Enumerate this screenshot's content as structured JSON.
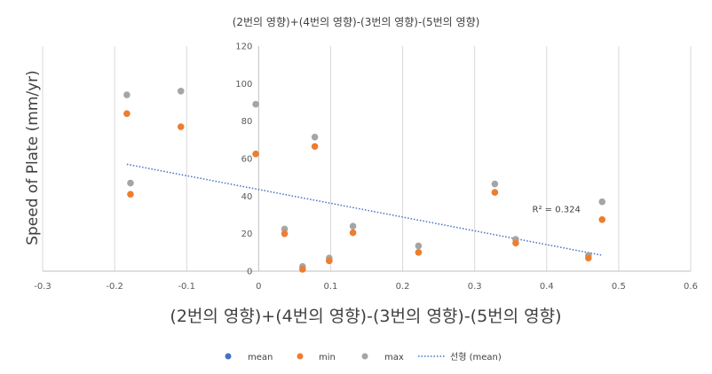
{
  "chart_data": {
    "type": "scatter",
    "title": "(2번의 영향)+(4번의 영향)-(3번의 영향)-(5번의 영향)",
    "xlabel": "(2번의 영향)+(4번의 영향)-(3번의 영향)-(5번의 영향)",
    "ylabel": "Speed of Plate (mm/yr)",
    "xlim": [
      -0.3,
      0.6
    ],
    "ylim": [
      0,
      120
    ],
    "x_ticks": [
      "-0.3",
      "-0.2",
      "-0.1",
      "0",
      "0.1",
      "0.2",
      "0.3",
      "0.4",
      "0.5",
      "0.6"
    ],
    "y_ticks": [
      "0",
      "20",
      "40",
      "60",
      "80",
      "100",
      "120"
    ],
    "grid": "vertical",
    "legend_position": "bottom",
    "series": [
      {
        "name": "mean",
        "color": "#4472C4",
        "points": []
      },
      {
        "name": "min",
        "color": "#ED7D31",
        "points": [
          [
            -0.183,
            84
          ],
          [
            -0.178,
            41
          ],
          [
            -0.108,
            77
          ],
          [
            -0.004,
            62.5
          ],
          [
            0.036,
            20
          ],
          [
            0.061,
            1
          ],
          [
            0.078,
            66.5
          ],
          [
            0.098,
            5.5
          ],
          [
            0.131,
            20.5
          ],
          [
            0.222,
            10
          ],
          [
            0.328,
            42
          ],
          [
            0.357,
            15
          ],
          [
            0.458,
            7
          ],
          [
            0.477,
            27.5
          ]
        ]
      },
      {
        "name": "max",
        "color": "#A5A5A5",
        "points": [
          [
            -0.183,
            94
          ],
          [
            -0.178,
            47
          ],
          [
            -0.108,
            96
          ],
          [
            -0.004,
            89
          ],
          [
            0.036,
            22.5
          ],
          [
            0.061,
            2.5
          ],
          [
            0.078,
            71.5
          ],
          [
            0.098,
            7
          ],
          [
            0.131,
            24
          ],
          [
            0.222,
            13.5
          ],
          [
            0.328,
            46.5
          ],
          [
            0.357,
            17
          ],
          [
            0.458,
            8.5
          ],
          [
            0.477,
            37
          ]
        ]
      }
    ],
    "trendline": {
      "name": "선형 (mean)",
      "color": "#4472C4",
      "x_range": [
        -0.183,
        0.477
      ],
      "y_range": [
        57,
        8.5
      ],
      "r2_label": "R² = 0.324",
      "r2_anchor": [
        0.38,
        33
      ]
    }
  }
}
